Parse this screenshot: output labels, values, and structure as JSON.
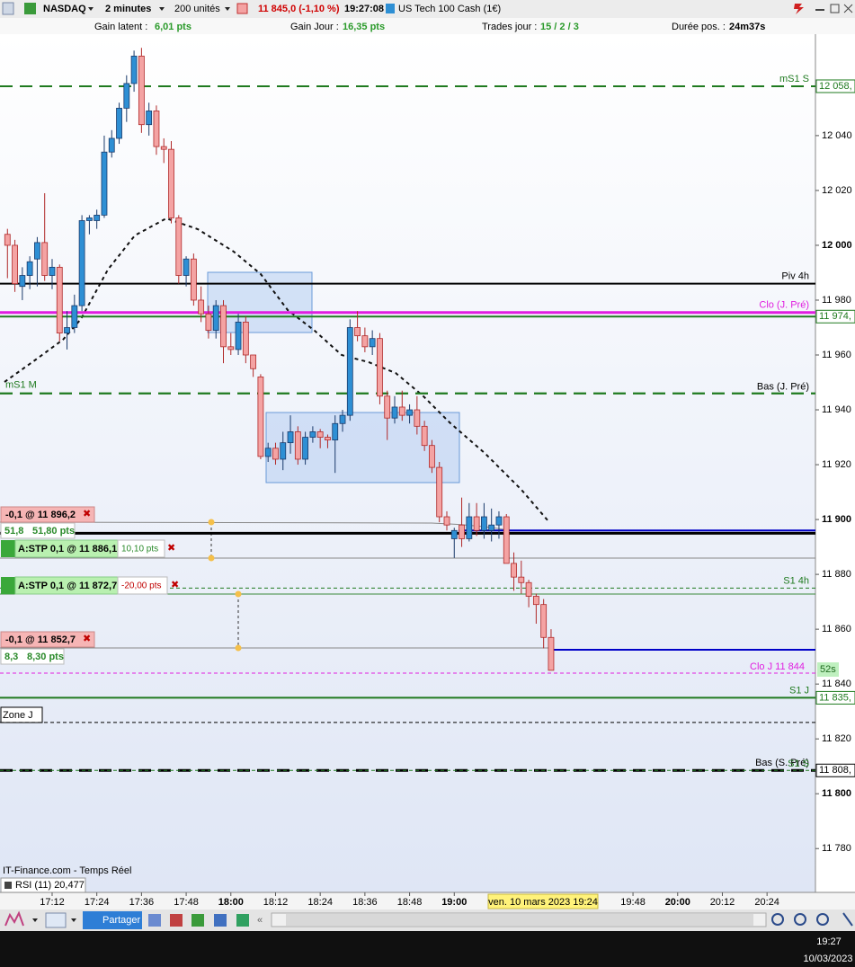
{
  "toolbar": {
    "symbol": "NASDAQ",
    "timeframe": "2 minutes",
    "units": "200 unités",
    "price": "11 845,0 (-1,10 %)",
    "time": "19:27:08",
    "instrument": "US Tech 100 Cash (1€)"
  },
  "stats": [
    {
      "label": "Gain latent :",
      "value": "6,01 pts"
    },
    {
      "label": "Gain Jour :",
      "value": "16,35 pts"
    },
    {
      "label": "Trades jour :",
      "value": "15 / 2 / 3"
    },
    {
      "label": "Durée pos. :",
      "value": "24m37s"
    }
  ],
  "chart_data": {
    "type": "candlestick",
    "x": [
      "17:00",
      "17:02",
      "17:04",
      "17:06",
      "17:08",
      "17:10",
      "17:12",
      "17:14",
      "17:16",
      "17:18",
      "17:20",
      "17:22",
      "17:24",
      "17:26",
      "17:28",
      "17:30",
      "17:32",
      "17:34",
      "17:36",
      "17:38",
      "17:40",
      "17:42",
      "17:44",
      "17:46",
      "17:48",
      "17:50",
      "17:52",
      "17:54",
      "17:56",
      "17:58",
      "18:00",
      "18:02",
      "18:04",
      "18:06",
      "18:08",
      "18:10",
      "18:12",
      "18:14",
      "18:16",
      "18:18",
      "18:20",
      "18:22",
      "18:24",
      "18:26",
      "18:28",
      "18:30",
      "18:32",
      "18:34",
      "18:36",
      "18:38",
      "18:40",
      "18:42",
      "18:44",
      "18:46",
      "18:48",
      "18:50",
      "18:52",
      "18:54",
      "18:56",
      "18:58",
      "19:00",
      "19:02",
      "19:04",
      "19:06",
      "19:08",
      "19:10",
      "19:12",
      "19:14",
      "19:16",
      "19:18",
      "19:20",
      "19:22",
      "19:24",
      "19:26"
    ],
    "open": [
      12004,
      12000,
      11985,
      11989,
      11995,
      12001,
      11989,
      11992,
      11968,
      11970,
      11978,
      12009,
      12009,
      12011,
      12034,
      12039,
      12050,
      12059,
      12069,
      12044,
      12049,
      12036,
      12035,
      12010,
      11989,
      11995,
      11980,
      11975,
      11969,
      11978,
      11963,
      11962,
      11972,
      11960,
      11952,
      11923,
      11926,
      11922,
      11928,
      11932,
      11922,
      11930,
      11932,
      11930,
      11929,
      11935,
      11938,
      11970,
      11967,
      11963,
      11966,
      11945,
      11937,
      11941,
      11938,
      11940,
      11934,
      11927,
      11919,
      11901,
      11893,
      11898,
      11893,
      11901,
      11896,
      11896,
      11898,
      11901,
      11884,
      11879,
      11877,
      11872,
      11869,
      11857
    ],
    "high": [
      12006,
      12002,
      11992,
      11996,
      12003,
      12019,
      11995,
      11993,
      11976,
      11982,
      12011,
      12011,
      12013,
      12040,
      12042,
      12052,
      12062,
      12071,
      12072,
      12052,
      12051,
      12039,
      12038,
      12011,
      11996,
      11997,
      11985,
      11978,
      11980,
      11980,
      11968,
      11975,
      11974,
      11960,
      11953,
      11928,
      11928,
      11932,
      11938,
      11934,
      11932,
      11934,
      11933,
      11931,
      11938,
      11940,
      11973,
      11976,
      11970,
      11969,
      11968,
      11947,
      11945,
      11947,
      11942,
      11945,
      11936,
      11929,
      11921,
      11903,
      11897,
      11908,
      11906,
      11906,
      11906,
      11904,
      11903,
      11902,
      11888,
      11885,
      11878,
      11873,
      11871,
      11860
    ],
    "low": [
      11988,
      11983,
      11980,
      11984,
      11985,
      11987,
      11984,
      11965,
      11962,
      11968,
      11976,
      12004,
      12006,
      12010,
      12032,
      12037,
      12045,
      12056,
      12041,
      12040,
      12033,
      12030,
      12008,
      11986,
      11985,
      11978,
      11972,
      11966,
      11966,
      11957,
      11960,
      11960,
      11957,
      11952,
      11922,
      11921,
      11920,
      11918,
      11924,
      11920,
      11920,
      11928,
      11926,
      11926,
      11917,
      11932,
      11936,
      11965,
      11961,
      11960,
      11942,
      11929,
      11935,
      11936,
      11935,
      11931,
      11925,
      11917,
      11899,
      11896,
      11886,
      11890,
      11892,
      11894,
      11893,
      11892,
      11893,
      11886,
      11874,
      11873,
      11868,
      11862,
      11853,
      11845
    ],
    "close": [
      12000,
      11986,
      11989,
      11994,
      12001,
      11989,
      11992,
      11968,
      11970,
      11978,
      12009,
      12010,
      12011,
      12034,
      12039,
      12050,
      12059,
      12069,
      12044,
      12049,
      12036,
      12035,
      12010,
      11989,
      11995,
      11980,
      11975,
      11969,
      11978,
      11963,
      11962,
      11972,
      11960,
      11955,
      11923,
      11926,
      11922,
      11928,
      11932,
      11922,
      11930,
      11932,
      11930,
      11929,
      11935,
      11938,
      11970,
      11967,
      11963,
      11966,
      11945,
      11937,
      11941,
      11938,
      11940,
      11934,
      11927,
      11919,
      11901,
      11898,
      11896,
      11893,
      11901,
      11896,
      11901,
      11898,
      11901,
      11884,
      11879,
      11877,
      11872,
      11869,
      11857,
      11845
    ],
    "up_color": "#2e8fd4",
    "down_color": "#f4a3a3",
    "xlim": [
      "16:58",
      "20:37"
    ],
    "xticks": [
      "17:12",
      "17:24",
      "17:36",
      "17:48",
      "18:00",
      "18:12",
      "18:24",
      "18:36",
      "18:48",
      "19:00",
      "19:48",
      "20:00",
      "20:12",
      "20:24"
    ],
    "ylim": [
      11765,
      12077
    ],
    "yticks": [
      {
        "value": 11780,
        "label": "11 780"
      },
      {
        "value": 11800,
        "label": "11 800"
      },
      {
        "value": 11820,
        "label": "11 820"
      },
      {
        "value": 11840,
        "label": "11 840"
      },
      {
        "value": 11860,
        "label": "11 860"
      },
      {
        "value": 11880,
        "label": "11 880"
      },
      {
        "value": 11900,
        "label": "11 900"
      },
      {
        "value": 11920,
        "label": "11 920"
      },
      {
        "value": 11940,
        "label": "11 940"
      },
      {
        "value": 11960,
        "label": "11 960"
      },
      {
        "value": 11980,
        "label": "11 980"
      },
      {
        "value": 12000,
        "label": "12 000"
      },
      {
        "value": 12020,
        "label": "12 020"
      },
      {
        "value": 12040,
        "label": "12 040"
      }
    ],
    "levels": [
      {
        "name": "mS1 S",
        "value": 12058,
        "color": "#1f7a1f",
        "style": "dashed",
        "width": 2,
        "axis_label": "12 058,"
      },
      {
        "name": "Piv 4h",
        "value": 11986,
        "color": "#000000",
        "style": "solid",
        "width": 2
      },
      {
        "name": "Clo (J. Pré)",
        "value": 11975.5,
        "color": "#e01ee0",
        "style": "solid",
        "width": 3
      },
      {
        "value": 11974,
        "color": "#1f7a1f",
        "style": "solid",
        "width": 2,
        "axis_label": "11 974,"
      },
      {
        "name": "mS1 M",
        "value": 11946,
        "color": "#1f7a1f",
        "style": "dashed",
        "width": 2
      },
      {
        "name": "Bas (J. Pré)",
        "value": 11946,
        "color": "#1f7a1f",
        "style": "dashed",
        "width": 2
      },
      {
        "name": "S1 4h",
        "value": 11875,
        "color": "#1f7a1f",
        "style": "dashed",
        "width": 1
      },
      {
        "name": "Clo J 11 844",
        "value": 11844,
        "color": "#e01ee0",
        "style": "dashed",
        "width": 1
      },
      {
        "name": "S1 J",
        "value": 11835,
        "color": "#1f7a1f",
        "style": "solid",
        "width": 2,
        "axis_label": "11 835,"
      },
      {
        "name": "Zone J",
        "value": 11826,
        "color": "#000000",
        "style": "dashed",
        "width": 1
      },
      {
        "name": "Bas (S. Pré)",
        "value": 11808.5,
        "color": "#000000",
        "style": "dashed",
        "width": 3,
        "axis_label": "11 808,"
      },
      {
        "name": "S1 S",
        "value": 11808.5,
        "color": "#1f7a1f",
        "style": "dashed",
        "width": 1
      },
      {
        "value": 11896,
        "color": "#0000c8",
        "style": "solid",
        "width": 2
      },
      {
        "value": 11895,
        "color": "#000000",
        "style": "solid",
        "width": 3
      },
      {
        "value": 11852.5,
        "color": "#0000c8",
        "style": "solid",
        "width": 2
      }
    ]
  },
  "countdown": "52s",
  "orders": [
    {
      "label": "-0,1 @ 11 896,2",
      "points": "51,8",
      "pnl": "51,80 pts"
    },
    {
      "label": "A:STP  0,1 @ 11 886,1",
      "pnl": "10,10 pts"
    },
    {
      "label": "A:STP  0,1 @ 11 872,7",
      "pnl": "-20,00 pts"
    },
    {
      "label": "-0,1 @ 11 852,7",
      "points": "8,3",
      "pnl": "8,30 pts"
    }
  ],
  "footer": {
    "source": "IT-Finance.com - Temps Réel",
    "indicator": "RSI (11) 20,477",
    "cursor_date": "ven. 10 mars 2023 19:24"
  },
  "bottom_toolbar": {
    "share": "Partager"
  },
  "taskbar": {
    "time": "19:27",
    "date": "10/03/2023"
  }
}
